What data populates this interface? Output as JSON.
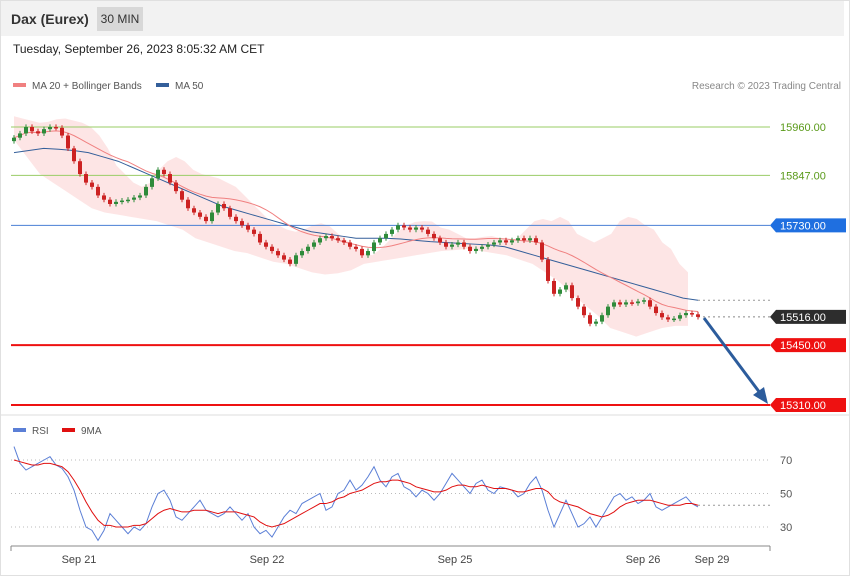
{
  "header": {
    "title": "Dax (Eurex)",
    "timeframe": "30 MIN"
  },
  "datetime": "Tuesday, September 26, 2023 8:05:32 AM CET",
  "legend": {
    "ma20_label": "MA 20 + Bollinger Bands",
    "ma50_label": "MA 50",
    "rsi_label": "RSI",
    "rsi_ma_label": "9MA"
  },
  "credit": "Research © 2023 Trading Central",
  "colors": {
    "ma20": "#f08080",
    "ma50": "#345f9a",
    "band_fill": "#fde2e2",
    "bull": "#2e8b3a",
    "bear": "#cc2222",
    "support": "#ee1111",
    "resistance": "#99cc66",
    "pivot": "#4a7fd4",
    "last": "#2d2d2d",
    "arrow": "#2c5c9c",
    "rsi": "#5b7fd6",
    "rsi_ma": "#e01010"
  },
  "chart_data": [
    {
      "type": "candlestick",
      "title": "",
      "x_labels": [
        "Sep 21",
        "Sep 22",
        "Sep 25",
        "Sep 26",
        "Sep 29"
      ],
      "ylim": [
        15280,
        15990
      ],
      "levels": [
        {
          "value": 15960.0,
          "label": "15960.00",
          "kind": "resistance"
        },
        {
          "value": 15847.0,
          "label": "15847.00",
          "kind": "resistance"
        },
        {
          "value": 15730.0,
          "label": "15730.00",
          "kind": "pivot"
        },
        {
          "value": 15516.0,
          "label": "15516.00",
          "kind": "last"
        },
        {
          "value": 15450.0,
          "label": "15450.00",
          "kind": "support"
        },
        {
          "value": 15310.0,
          "label": "15310.00",
          "kind": "support"
        }
      ],
      "close_series": [
        15935,
        15945,
        15960,
        15950,
        15945,
        15955,
        15960,
        15958,
        15940,
        15910,
        15880,
        15850,
        15830,
        15820,
        15800,
        15790,
        15780,
        15785,
        15788,
        15790,
        15795,
        15800,
        15820,
        15840,
        15860,
        15850,
        15830,
        15810,
        15790,
        15770,
        15760,
        15750,
        15740,
        15760,
        15780,
        15770,
        15750,
        15740,
        15730,
        15720,
        15710,
        15690,
        15680,
        15670,
        15660,
        15650,
        15640,
        15660,
        15670,
        15680,
        15690,
        15700,
        15705,
        15700,
        15695,
        15690,
        15680,
        15675,
        15660,
        15670,
        15690,
        15700,
        15710,
        15720,
        15730,
        15725,
        15720,
        15725,
        15720,
        15710,
        15700,
        15690,
        15680,
        15685,
        15690,
        15680,
        15670,
        15675,
        15680,
        15685,
        15690,
        15695,
        15690,
        15695,
        15700,
        15695,
        15700,
        15690,
        15650,
        15600,
        15570,
        15580,
        15590,
        15560,
        15540,
        15520,
        15500,
        15505,
        15520,
        15540,
        15550,
        15545,
        15550,
        15548,
        15552,
        15555,
        15540,
        15525,
        15515,
        15510,
        15512,
        15520,
        15525,
        15522,
        15516
      ],
      "band_top": [
        15985,
        15980,
        15975,
        15970,
        15972,
        15978,
        15980,
        15975,
        15970,
        15960,
        15940,
        15910,
        15870,
        15850,
        15830,
        15820,
        15830,
        15860,
        15880,
        15890,
        15880,
        15860,
        15850,
        15845,
        15840,
        15830,
        15820,
        15800,
        15780,
        15760,
        15740,
        15730,
        15720,
        15715,
        15720,
        15730,
        15735,
        15728,
        15710,
        15695,
        15680,
        15665,
        15660,
        15675,
        15695,
        15715,
        15730,
        15738,
        15740,
        15739,
        15725,
        15720,
        15710,
        15700,
        15700,
        15703,
        15705,
        15700,
        15695,
        15700,
        15720,
        15740,
        15745,
        15740,
        15750,
        15740,
        15710,
        15700,
        15690,
        15700,
        15710,
        15740,
        15750,
        15745,
        15730,
        15720,
        15690,
        15675,
        15640,
        15620
      ],
      "band_bottom": [
        15930,
        15890,
        15850,
        15830,
        15810,
        15790,
        15770,
        15760,
        15755,
        15750,
        15745,
        15740,
        15730,
        15720,
        15700,
        15690,
        15680,
        15670,
        15665,
        15655,
        15645,
        15640,
        15630,
        15620,
        15615,
        15618,
        15625,
        15640,
        15645,
        15650,
        15655,
        15660,
        15665,
        15670,
        15672,
        15675,
        15670,
        15665,
        15660,
        15650,
        15640,
        15620,
        15600,
        15570,
        15545,
        15520,
        15490,
        15480,
        15470,
        15480,
        15490,
        15495,
        15495
      ],
      "ma50": [
        15900,
        15905,
        15910,
        15908,
        15905,
        15900,
        15890,
        15880,
        15865,
        15850,
        15835,
        15820,
        15805,
        15790,
        15775,
        15765,
        15755,
        15745,
        15735,
        15725,
        15715,
        15710,
        15705,
        15700,
        15700,
        15700,
        15698,
        15695,
        15692,
        15690,
        15688,
        15686,
        15684,
        15680,
        15670,
        15660,
        15650,
        15640,
        15630,
        15620,
        15610,
        15600,
        15590,
        15580,
        15570,
        15560,
        15555
      ]
    },
    {
      "type": "line",
      "title": "",
      "y_ticks": [
        70,
        50,
        30
      ],
      "ylim": [
        18,
        82
      ],
      "series": [
        {
          "name": "RSI",
          "values": [
            78,
            68,
            64,
            66,
            68,
            70,
            72,
            67,
            65,
            60,
            52,
            40,
            30,
            28,
            22,
            28,
            38,
            34,
            30,
            26,
            30,
            28,
            32,
            42,
            50,
            52,
            46,
            36,
            34,
            38,
            42,
            46,
            40,
            38,
            36,
            38,
            42,
            38,
            34,
            38,
            30,
            26,
            28,
            24,
            30,
            36,
            40,
            38,
            44,
            46,
            48,
            50,
            40,
            42,
            50,
            52,
            58,
            52,
            55,
            60,
            66,
            58,
            54,
            60,
            62,
            54,
            52,
            48,
            52,
            50,
            46,
            50,
            56,
            62,
            58,
            54,
            50,
            56,
            58,
            52,
            50,
            54,
            53,
            52,
            48,
            50,
            56,
            60,
            52,
            40,
            30,
            38,
            46,
            38,
            30,
            32,
            36,
            30,
            36,
            42,
            48,
            50,
            46,
            48,
            44,
            46,
            50,
            42,
            40,
            42,
            44,
            46,
            48,
            44,
            42
          ]
        },
        {
          "name": "9MA",
          "values": [
            70,
            69,
            68,
            67,
            67,
            68,
            68,
            67,
            66,
            63,
            58,
            52,
            45,
            39,
            34,
            31,
            31,
            30,
            30,
            30,
            31,
            31,
            32,
            35,
            38,
            40,
            41,
            40,
            39,
            39,
            40,
            40,
            40,
            39,
            38,
            39,
            39,
            39,
            38,
            37,
            36,
            33,
            31,
            30,
            31,
            32,
            34,
            36,
            38,
            40,
            42,
            44,
            44,
            45,
            47,
            48,
            50,
            51,
            52,
            54,
            56,
            57,
            57,
            58,
            58,
            57,
            56,
            54,
            53,
            52,
            51,
            51,
            52,
            54,
            55,
            55,
            54,
            54,
            55,
            54,
            53,
            53,
            53,
            52,
            51,
            51,
            52,
            53,
            53,
            51,
            47,
            45,
            44,
            43,
            42,
            40,
            38,
            37,
            36,
            37,
            39,
            42,
            44,
            45,
            46,
            46,
            46,
            45,
            44,
            43,
            43,
            43,
            44,
            44,
            43
          ]
        }
      ]
    }
  ]
}
